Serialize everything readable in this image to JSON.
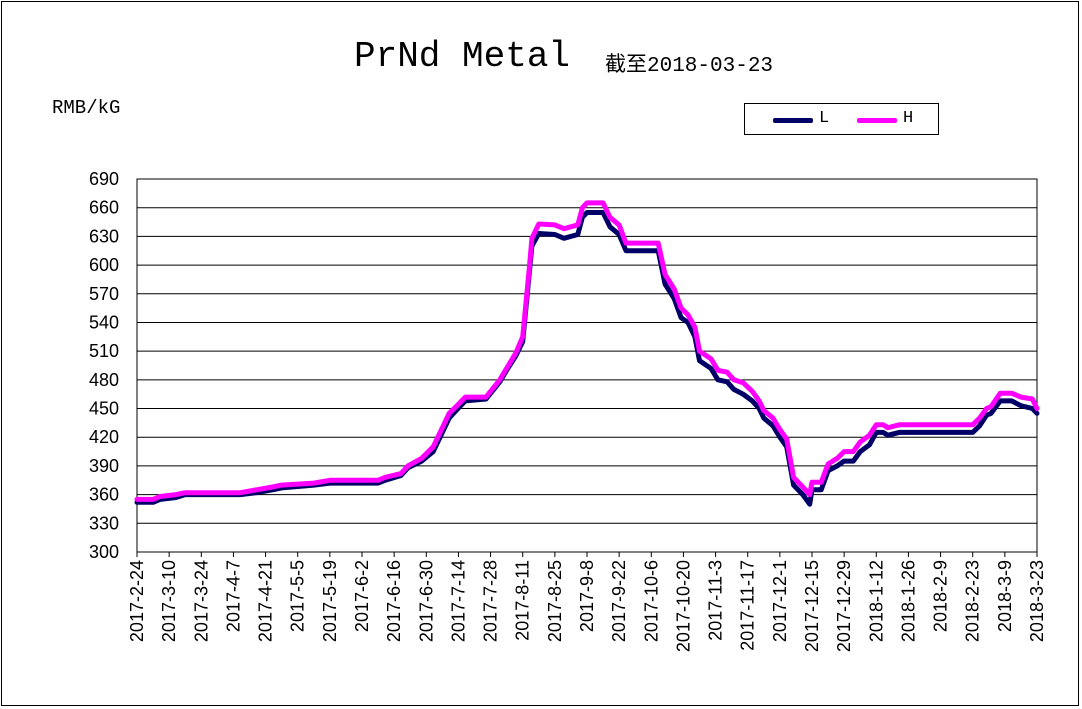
{
  "title": "PrNd Metal",
  "subtitle": "截至2018-03-23",
  "y_unit": "RMB/kG",
  "colors": {
    "L": "#000066",
    "H": "#ff00ff",
    "grid": "#000000",
    "background": "#ffffff"
  },
  "chart_data": {
    "type": "line",
    "title": "PrNd Metal",
    "subtitle": "截至2018-03-23",
    "ylabel": "RMB/kG",
    "xlabel": "",
    "ylim": [
      300,
      690
    ],
    "yticks": [
      300,
      330,
      360,
      390,
      420,
      450,
      480,
      510,
      540,
      570,
      600,
      630,
      660,
      690
    ],
    "x_tick_labels": [
      "2017-2-24",
      "2017-3-10",
      "2017-3-24",
      "2017-4-7",
      "2017-4-21",
      "2017-5-5",
      "2017-5-19",
      "2017-6-2",
      "2017-6-16",
      "2017-6-30",
      "2017-7-14",
      "2017-7-28",
      "2017-8-11",
      "2017-8-25",
      "2017-9-8",
      "2017-9-22",
      "2017-10-6",
      "2017-10-20",
      "2017-11-3",
      "2017-11-17",
      "2017-12-1",
      "2017-12-15",
      "2017-12-29",
      "2018-1-12",
      "2018-1-26",
      "2018-2-9",
      "2018-2-23",
      "2018-3-9",
      "2018-3-23"
    ],
    "grid": true,
    "legend_position": "top-right",
    "series": [
      {
        "name": "L",
        "color": "#000066",
        "points": [
          [
            "2017-2-24",
            352
          ],
          [
            "2017-3-3",
            352
          ],
          [
            "2017-3-6",
            355
          ],
          [
            "2017-3-13",
            357
          ],
          [
            "2017-3-17",
            360
          ],
          [
            "2017-4-10",
            360
          ],
          [
            "2017-4-17",
            362
          ],
          [
            "2017-4-24",
            365
          ],
          [
            "2017-4-28",
            367
          ],
          [
            "2017-5-12",
            370
          ],
          [
            "2017-5-19",
            372
          ],
          [
            "2017-6-9",
            372
          ],
          [
            "2017-6-12",
            375
          ],
          [
            "2017-6-19",
            380
          ],
          [
            "2017-6-22",
            388
          ],
          [
            "2017-6-28",
            395
          ],
          [
            "2017-7-3",
            405
          ],
          [
            "2017-7-6",
            420
          ],
          [
            "2017-7-10",
            440
          ],
          [
            "2017-7-13",
            448
          ],
          [
            "2017-7-17",
            458
          ],
          [
            "2017-7-26",
            460
          ],
          [
            "2017-8-1",
            478
          ],
          [
            "2017-8-4",
            490
          ],
          [
            "2017-8-8",
            505
          ],
          [
            "2017-8-11",
            520
          ],
          [
            "2017-8-14",
            595
          ],
          [
            "2017-8-15",
            620
          ],
          [
            "2017-8-18",
            633
          ],
          [
            "2017-8-25",
            632
          ],
          [
            "2017-8-29",
            628
          ],
          [
            "2017-9-4",
            632
          ],
          [
            "2017-9-6",
            650
          ],
          [
            "2017-9-8",
            655
          ],
          [
            "2017-9-15",
            655
          ],
          [
            "2017-9-18",
            640
          ],
          [
            "2017-9-22",
            632
          ],
          [
            "2017-9-25",
            615
          ],
          [
            "2017-10-9",
            615
          ],
          [
            "2017-10-12",
            580
          ],
          [
            "2017-10-16",
            565
          ],
          [
            "2017-10-19",
            545
          ],
          [
            "2017-10-22",
            540
          ],
          [
            "2017-10-25",
            525
          ],
          [
            "2017-10-27",
            500
          ],
          [
            "2017-11-1",
            492
          ],
          [
            "2017-11-4",
            480
          ],
          [
            "2017-11-8",
            478
          ],
          [
            "2017-11-11",
            470
          ],
          [
            "2017-11-15",
            465
          ],
          [
            "2017-11-19",
            458
          ],
          [
            "2017-11-22",
            450
          ],
          [
            "2017-11-24",
            440
          ],
          [
            "2017-11-28",
            432
          ],
          [
            "2017-12-1",
            420
          ],
          [
            "2017-12-4",
            410
          ],
          [
            "2017-12-7",
            370
          ],
          [
            "2017-12-11",
            360
          ],
          [
            "2017-12-14",
            350
          ],
          [
            "2017-12-15",
            365
          ],
          [
            "2017-12-19",
            365
          ],
          [
            "2017-12-22",
            385
          ],
          [
            "2017-12-26",
            390
          ],
          [
            "2017-12-29",
            395
          ],
          [
            "2018-1-2",
            395
          ],
          [
            "2018-1-5",
            405
          ],
          [
            "2018-1-9",
            412
          ],
          [
            "2018-1-12",
            425
          ],
          [
            "2018-1-15",
            425
          ],
          [
            "2018-1-17",
            422
          ],
          [
            "2018-1-22",
            425
          ],
          [
            "2018-2-23",
            425
          ],
          [
            "2018-2-26",
            432
          ],
          [
            "2018-3-1",
            443
          ],
          [
            "2018-3-3",
            445
          ],
          [
            "2018-3-7",
            458
          ],
          [
            "2018-3-12",
            458
          ],
          [
            "2018-3-16",
            453
          ],
          [
            "2018-3-21",
            450
          ],
          [
            "2018-3-23",
            445
          ]
        ]
      },
      {
        "name": "H",
        "color": "#ff00ff",
        "points": [
          [
            "2017-2-24",
            355
          ],
          [
            "2017-3-3",
            355
          ],
          [
            "2017-3-6",
            358
          ],
          [
            "2017-3-13",
            360
          ],
          [
            "2017-3-17",
            362
          ],
          [
            "2017-4-10",
            362
          ],
          [
            "2017-4-17",
            365
          ],
          [
            "2017-4-24",
            368
          ],
          [
            "2017-4-28",
            370
          ],
          [
            "2017-5-12",
            372
          ],
          [
            "2017-5-19",
            375
          ],
          [
            "2017-6-9",
            375
          ],
          [
            "2017-6-12",
            378
          ],
          [
            "2017-6-19",
            382
          ],
          [
            "2017-6-22",
            390
          ],
          [
            "2017-6-28",
            398
          ],
          [
            "2017-7-3",
            410
          ],
          [
            "2017-7-6",
            425
          ],
          [
            "2017-7-10",
            445
          ],
          [
            "2017-7-13",
            452
          ],
          [
            "2017-7-17",
            462
          ],
          [
            "2017-7-26",
            462
          ],
          [
            "2017-8-1",
            480
          ],
          [
            "2017-8-4",
            492
          ],
          [
            "2017-8-8",
            508
          ],
          [
            "2017-8-11",
            525
          ],
          [
            "2017-8-14",
            600
          ],
          [
            "2017-8-15",
            628
          ],
          [
            "2017-8-18",
            643
          ],
          [
            "2017-8-25",
            642
          ],
          [
            "2017-8-29",
            638
          ],
          [
            "2017-9-4",
            642
          ],
          [
            "2017-9-6",
            660
          ],
          [
            "2017-9-8",
            665
          ],
          [
            "2017-9-15",
            665
          ],
          [
            "2017-9-18",
            650
          ],
          [
            "2017-9-22",
            642
          ],
          [
            "2017-9-25",
            623
          ],
          [
            "2017-10-9",
            623
          ],
          [
            "2017-10-12",
            590
          ],
          [
            "2017-10-16",
            575
          ],
          [
            "2017-10-19",
            555
          ],
          [
            "2017-10-22",
            548
          ],
          [
            "2017-10-25",
            535
          ],
          [
            "2017-10-27",
            510
          ],
          [
            "2017-11-1",
            502
          ],
          [
            "2017-11-4",
            490
          ],
          [
            "2017-11-8",
            488
          ],
          [
            "2017-11-11",
            480
          ],
          [
            "2017-11-15",
            477
          ],
          [
            "2017-11-19",
            468
          ],
          [
            "2017-11-22",
            458
          ],
          [
            "2017-11-24",
            448
          ],
          [
            "2017-11-28",
            440
          ],
          [
            "2017-12-1",
            428
          ],
          [
            "2017-12-4",
            418
          ],
          [
            "2017-12-7",
            378
          ],
          [
            "2017-12-11",
            368
          ],
          [
            "2017-12-14",
            360
          ],
          [
            "2017-12-15",
            373
          ],
          [
            "2017-12-19",
            373
          ],
          [
            "2017-12-22",
            392
          ],
          [
            "2017-12-26",
            398
          ],
          [
            "2017-12-29",
            405
          ],
          [
            "2018-1-2",
            405
          ],
          [
            "2018-1-5",
            415
          ],
          [
            "2018-1-9",
            422
          ],
          [
            "2018-1-12",
            433
          ],
          [
            "2018-1-15",
            433
          ],
          [
            "2018-1-17",
            430
          ],
          [
            "2018-1-22",
            433
          ],
          [
            "2018-2-23",
            433
          ],
          [
            "2018-2-26",
            440
          ],
          [
            "2018-3-1",
            450
          ],
          [
            "2018-3-3",
            452
          ],
          [
            "2018-3-7",
            466
          ],
          [
            "2018-3-12",
            466
          ],
          [
            "2018-3-16",
            462
          ],
          [
            "2018-3-21",
            460
          ],
          [
            "2018-3-23",
            450
          ]
        ]
      }
    ]
  }
}
